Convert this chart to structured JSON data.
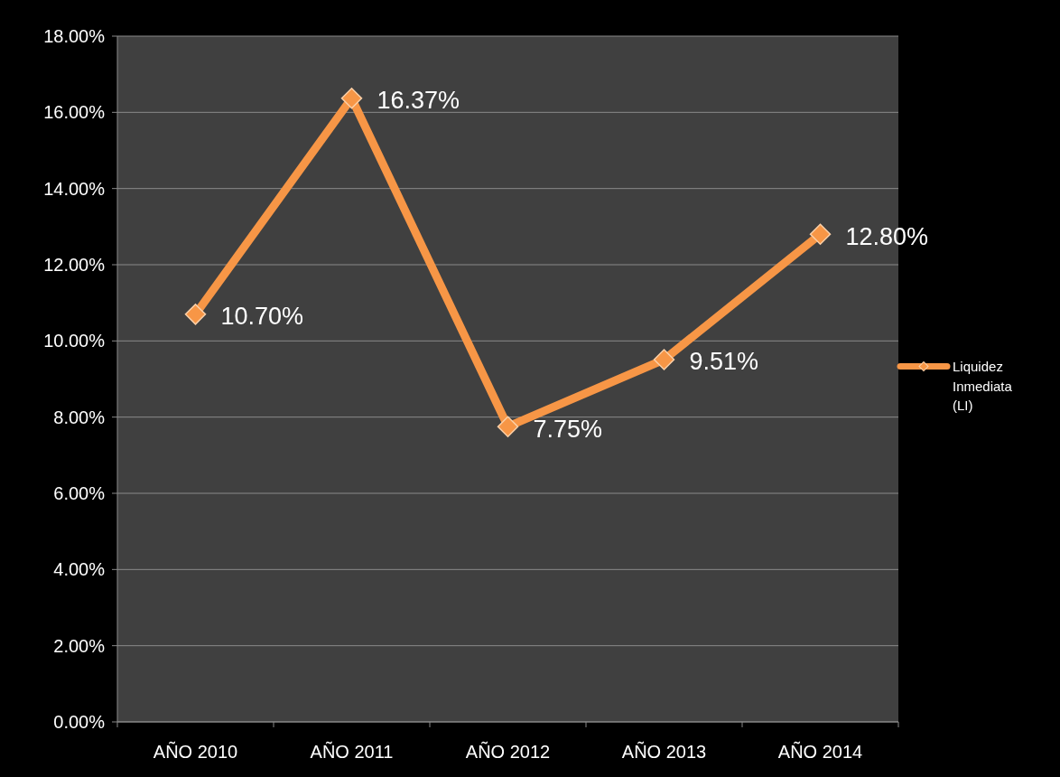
{
  "chart_data": {
    "type": "line",
    "categories": [
      "AÑO 2010",
      "AÑO 2011",
      "AÑO 2012",
      "AÑO 2013",
      "AÑO 2014"
    ],
    "series": [
      {
        "name": "Liquidez Inmediata (LI)",
        "color": "#f79646",
        "values": [
          10.7,
          16.37,
          7.75,
          9.51,
          12.8
        ],
        "value_labels": [
          "10.70%",
          "16.37%",
          "7.75%",
          "9.51%",
          "12.80%"
        ]
      }
    ],
    "ylim": [
      0,
      18
    ],
    "yticks": [
      {
        "value": 0,
        "label": "0.00%"
      },
      {
        "value": 2,
        "label": "2.00%"
      },
      {
        "value": 4,
        "label": "4.00%"
      },
      {
        "value": 6,
        "label": "6.00%"
      },
      {
        "value": 8,
        "label": "8.00%"
      },
      {
        "value": 10,
        "label": "10.00%"
      },
      {
        "value": 12,
        "label": "12.00%"
      },
      {
        "value": 14,
        "label": "14.00%"
      },
      {
        "value": 16,
        "label": "16.00%"
      },
      {
        "value": 18,
        "label": "18.00%"
      }
    ],
    "grid": "y",
    "legend": "right",
    "marker": "diamond",
    "line_style": "solid"
  }
}
